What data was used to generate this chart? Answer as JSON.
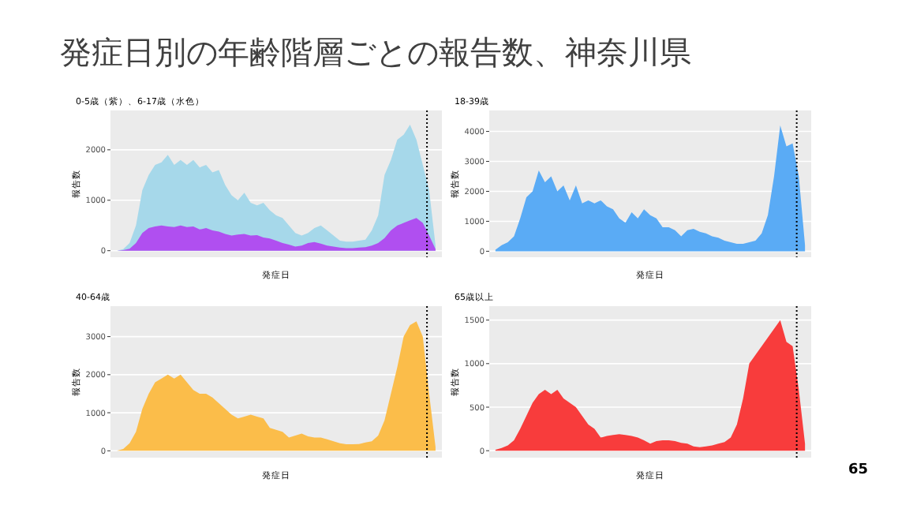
{
  "chart_data": [
    {
      "type": "area",
      "title": "0-5歳（紫）、6-17歳（水色）",
      "xlabel": "発症日",
      "ylabel": "報告数",
      "annotations": [
        "発症日別の年齢階層ごとの報告数、神奈川県",
        "65"
      ],
      "categories": [
        null,
        null,
        null,
        null,
        null,
        null,
        null,
        null,
        null,
        null,
        null,
        null,
        null,
        null,
        null,
        null,
        null,
        null,
        null,
        null,
        null,
        null,
        null,
        null,
        null,
        null,
        null,
        null,
        null,
        null,
        null,
        null,
        null,
        null,
        null,
        null,
        null,
        null,
        null,
        null,
        null,
        null,
        null,
        null,
        null,
        null,
        null,
        null,
        null,
        null,
        null
      ],
      "ylim": [
        -130,
        2780
      ],
      "yticks": [
        0,
        1000,
        2000
      ],
      "tick_labels": "y",
      "grid": "y",
      "series": [
        {
          "color": "#a6d8ea",
          "values": [
            0,
            30,
            150,
            500,
            1200,
            1500,
            1700,
            1750,
            1900,
            1700,
            1800,
            1700,
            1800,
            1650,
            1700,
            1550,
            1600,
            1300,
            1100,
            1000,
            1150,
            950,
            900,
            950,
            800,
            700,
            650,
            500,
            350,
            300,
            350,
            450,
            500,
            400,
            300,
            200,
            180,
            180,
            200,
            220,
            400,
            700,
            1500,
            1800,
            2200,
            2300,
            2500,
            2200,
            1700,
            1200,
            100
          ]
        },
        {
          "color": "#b04ff0",
          "values": [
            0,
            10,
            40,
            150,
            350,
            450,
            480,
            500,
            480,
            470,
            500,
            470,
            480,
            420,
            450,
            400,
            380,
            330,
            300,
            320,
            330,
            300,
            310,
            260,
            240,
            200,
            150,
            120,
            80,
            100,
            150,
            170,
            140,
            100,
            80,
            60,
            50,
            50,
            60,
            70,
            100,
            150,
            250,
            400,
            500,
            550,
            600,
            650,
            550,
            300,
            30
          ]
        }
      ]
    },
    {
      "type": "area",
      "title": "18-39歳",
      "xlabel": "発症日",
      "ylabel": "報告数",
      "categories": [
        null,
        null,
        null,
        null,
        null,
        null,
        null,
        null,
        null,
        null,
        null,
        null,
        null,
        null,
        null,
        null,
        null,
        null,
        null,
        null,
        null,
        null,
        null,
        null,
        null,
        null,
        null,
        null,
        null,
        null,
        null,
        null,
        null,
        null,
        null,
        null,
        null,
        null,
        null,
        null,
        null,
        null,
        null,
        null,
        null,
        null,
        null,
        null,
        null,
        null,
        null
      ],
      "ylim": [
        -200,
        4700
      ],
      "yticks": [
        0,
        1000,
        2000,
        3000,
        4000
      ],
      "tick_labels": "y",
      "grid": "y",
      "series": [
        {
          "color": "#5aabf5",
          "values": [
            50,
            200,
            300,
            500,
            1100,
            1800,
            2000,
            2700,
            2300,
            2500,
            2000,
            2200,
            1700,
            2200,
            1600,
            1700,
            1600,
            1700,
            1500,
            1400,
            1100,
            950,
            1300,
            1100,
            1400,
            1200,
            1100,
            800,
            800,
            700,
            500,
            700,
            750,
            650,
            600,
            500,
            450,
            350,
            300,
            250,
            250,
            300,
            350,
            600,
            1200,
            2500,
            4200,
            3500,
            3600,
            2500,
            200
          ]
        }
      ]
    },
    {
      "type": "area",
      "title": "40-64歳",
      "xlabel": "発症日",
      "ylabel": "報告数",
      "categories": [
        null,
        null,
        null,
        null,
        null,
        null,
        null,
        null,
        null,
        null,
        null,
        null,
        null,
        null,
        null,
        null,
        null,
        null,
        null,
        null,
        null,
        null,
        null,
        null,
        null,
        null,
        null,
        null,
        null,
        null,
        null,
        null,
        null,
        null,
        null,
        null,
        null,
        null,
        null,
        null,
        null,
        null,
        null,
        null,
        null,
        null,
        null,
        null,
        null,
        null,
        null
      ],
      "ylim": [
        -180,
        3800
      ],
      "yticks": [
        0,
        1000,
        2000,
        3000
      ],
      "tick_labels": "y",
      "grid": "y",
      "series": [
        {
          "color": "#fbbd4a",
          "values": [
            0,
            50,
            200,
            500,
            1100,
            1500,
            1800,
            1900,
            2000,
            1900,
            2000,
            1800,
            1600,
            1500,
            1500,
            1400,
            1250,
            1100,
            950,
            850,
            900,
            950,
            900,
            850,
            600,
            550,
            500,
            350,
            400,
            450,
            380,
            350,
            350,
            300,
            250,
            200,
            170,
            170,
            180,
            220,
            250,
            400,
            800,
            1500,
            2200,
            3000,
            3300,
            3400,
            3000,
            1500,
            100
          ]
        }
      ]
    },
    {
      "type": "area",
      "title": "65歳以上",
      "xlabel": "発症日",
      "ylabel": "報告数",
      "categories": [
        null,
        null,
        null,
        null,
        null,
        null,
        null,
        null,
        null,
        null,
        null,
        null,
        null,
        null,
        null,
        null,
        null,
        null,
        null,
        null,
        null,
        null,
        null,
        null,
        null,
        null,
        null,
        null,
        null,
        null,
        null,
        null,
        null,
        null,
        null,
        null,
        null,
        null,
        null,
        null,
        null,
        null,
        null,
        null,
        null,
        null,
        null,
        null,
        null,
        null,
        null
      ],
      "ylim": [
        -80,
        1660
      ],
      "yticks": [
        0,
        500,
        1000,
        1500
      ],
      "tick_labels": "y",
      "grid": "y",
      "series": [
        {
          "color": "#f83c3c",
          "values": [
            10,
            30,
            60,
            120,
            250,
            400,
            550,
            650,
            700,
            650,
            700,
            600,
            550,
            500,
            400,
            300,
            250,
            150,
            170,
            180,
            190,
            180,
            170,
            150,
            120,
            80,
            110,
            120,
            120,
            110,
            90,
            80,
            50,
            40,
            50,
            60,
            80,
            100,
            150,
            300,
            600,
            1000,
            1100,
            1200,
            1300,
            1400,
            1500,
            1250,
            1200,
            700,
            80
          ]
        }
      ]
    }
  ]
}
